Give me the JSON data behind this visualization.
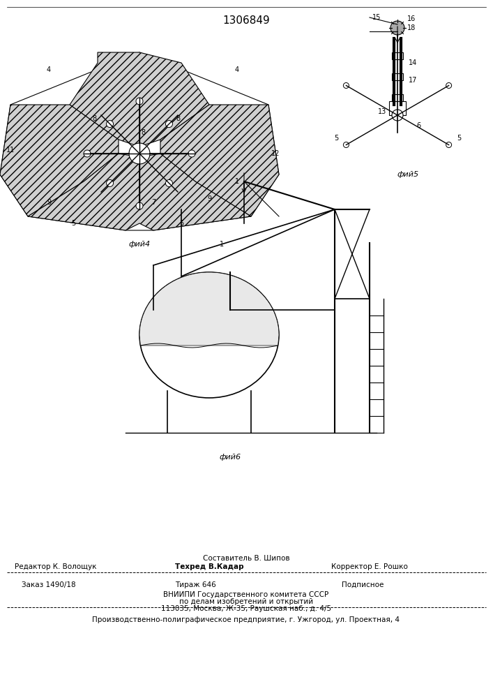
{
  "title": "1306849",
  "title_fontsize": 11,
  "bg_color": "#ffffff",
  "line_color": "#000000",
  "hatch_color": "#000000",
  "fig_label_1": "фий4",
  "fig_label_2": "фий5",
  "fig_label_3": "фий6",
  "footer_line1_left": "Редактор К. Волощук",
  "footer_line1_center": "Техред В.Кадар",
  "footer_line1_right": "Корректор Е. Рошко",
  "footer_line0_center": "Составитель В. Шипов",
  "footer_line2_col1": "Заказ 1490/18",
  "footer_line2_col2": "Тираж 646",
  "footer_line2_col3": "Подписное",
  "footer_line3": "ВНИИПИ Государственного комитета СССР",
  "footer_line4": "по делам изобретений и открытий",
  "footer_line5": "113035, Москва, Ж-35, Раушская наб., д. 4/5",
  "footer_line6": "Производственно-полиграфическое предприятие, г. Ужгород, ул. Проектная, 4"
}
